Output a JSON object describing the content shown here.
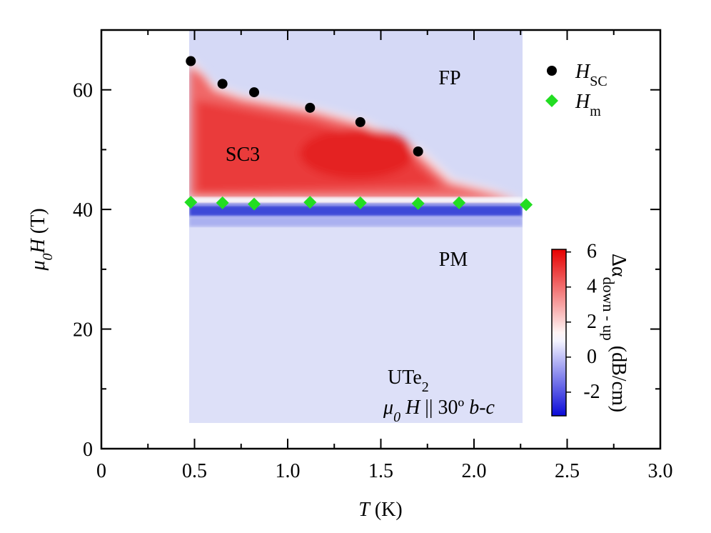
{
  "chart_data": {
    "type": "scatter",
    "xlabel": [
      "T",
      " (K)"
    ],
    "ylabel": [
      "μ",
      "0",
      "H",
      " (T)"
    ],
    "xlim": [
      0,
      3.0
    ],
    "ylim": [
      0,
      70
    ],
    "xticks": [
      0,
      {
        "value": 0.5,
        "label": "0.5"
      },
      {
        "value": 1.0,
        "label": "1.0"
      },
      {
        "value": 1.5,
        "label": "1.5"
      },
      {
        "value": 2.0,
        "label": "2.0"
      },
      {
        "value": 2.5,
        "label": "2.5"
      },
      {
        "value": 3.0,
        "label": "3.0"
      }
    ],
    "xminorticks": [
      0.25,
      0.75,
      1.25,
      1.75,
      2.25,
      2.75
    ],
    "yticks": [
      0,
      20,
      40,
      60
    ],
    "yminorticks": [
      10,
      30,
      50
    ],
    "legend": "upper right",
    "series": [
      {
        "name": [
          "H",
          "SC"
        ],
        "color": "#000000",
        "marker": "circle",
        "x": [
          0.48,
          0.65,
          0.82,
          1.12,
          1.39,
          1.7
        ],
        "values": [
          64.8,
          61.0,
          59.6,
          57.0,
          54.6,
          49.7
        ]
      },
      {
        "name": [
          "H",
          "m"
        ],
        "color": "#22dd22",
        "marker": "diamond",
        "x": [
          0.48,
          0.65,
          0.82,
          1.12,
          1.39,
          1.7,
          1.92,
          2.28
        ],
        "values": [
          41.2,
          41.1,
          40.9,
          41.2,
          41.1,
          41.0,
          41.1,
          40.8
        ]
      }
    ],
    "annotations": {
      "fp": "FP",
      "sc3": "SC3",
      "pm": "PM",
      "material": [
        "UTe",
        "2"
      ],
      "field": [
        "μ",
        "0",
        " H",
        " || 30º ",
        "b-c"
      ]
    },
    "colorbar": {
      "lim": [
        -3.35,
        6.15
      ],
      "ticks": [
        -2,
        0,
        2,
        4,
        6
      ],
      "label": [
        "Δα",
        "down - up",
        " (dB/cm)"
      ]
    }
  }
}
